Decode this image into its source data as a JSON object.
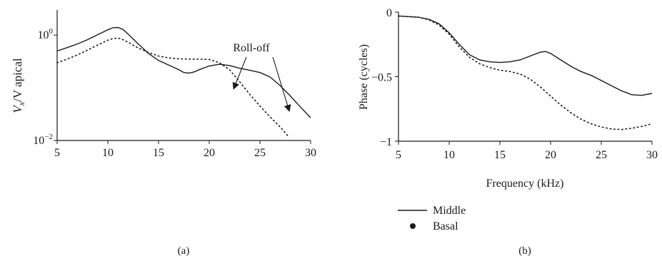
{
  "chart_data": [
    {
      "type": "line",
      "panel_label": "(a)",
      "xlabel": "",
      "ylabel": {
        "v": "V",
        "sub": "x",
        "rest": "/V apical"
      },
      "yscale": "log",
      "xlim": [
        5,
        30
      ],
      "ylim": [
        0.01,
        3
      ],
      "x_ticks": [
        5,
        10,
        15,
        20,
        25,
        30
      ],
      "y_ticks": [
        {
          "value": 1,
          "base": "10",
          "exp": "0"
        },
        {
          "value": 0.01,
          "base": "10",
          "exp": "−2"
        }
      ],
      "grid": false,
      "annotation": {
        "text": "Roll-off",
        "targets": [
          [
            22.4,
            0.095
          ],
          [
            27.9,
            0.036
          ]
        ]
      },
      "series": [
        {
          "name": "Middle",
          "style": "solid",
          "points": [
            [
              5,
              0.5
            ],
            [
              6,
              0.58
            ],
            [
              7,
              0.68
            ],
            [
              8,
              0.82
            ],
            [
              9,
              1.02
            ],
            [
              10,
              1.26
            ],
            [
              10.5,
              1.38
            ],
            [
              11,
              1.4
            ],
            [
              11.5,
              1.28
            ],
            [
              12,
              1.05
            ],
            [
              13,
              0.68
            ],
            [
              14,
              0.45
            ],
            [
              15,
              0.33
            ],
            [
              16,
              0.27
            ],
            [
              17,
              0.22
            ],
            [
              17.5,
              0.195
            ],
            [
              18,
              0.19
            ],
            [
              18.5,
              0.2
            ],
            [
              19,
              0.22
            ],
            [
              20,
              0.26
            ],
            [
              21,
              0.28
            ],
            [
              22,
              0.265
            ],
            [
              23,
              0.235
            ],
            [
              24,
              0.215
            ],
            [
              25,
              0.195
            ],
            [
              26,
              0.16
            ],
            [
              27,
              0.11
            ],
            [
              28,
              0.07
            ],
            [
              29,
              0.043
            ],
            [
              30,
              0.027
            ]
          ]
        },
        {
          "name": "Basal",
          "style": "dotted",
          "points": [
            [
              5,
              0.3
            ],
            [
              6,
              0.35
            ],
            [
              7,
              0.42
            ],
            [
              8,
              0.52
            ],
            [
              9,
              0.65
            ],
            [
              10,
              0.8
            ],
            [
              10.5,
              0.86
            ],
            [
              11,
              0.88
            ],
            [
              11.5,
              0.82
            ],
            [
              12,
              0.73
            ],
            [
              13,
              0.57
            ],
            [
              14,
              0.47
            ],
            [
              15,
              0.4
            ],
            [
              16,
              0.37
            ],
            [
              17,
              0.355
            ],
            [
              18,
              0.35
            ],
            [
              19,
              0.35
            ],
            [
              20,
              0.345
            ],
            [
              21,
              0.3
            ],
            [
              22,
              0.22
            ],
            [
              23,
              0.13
            ],
            [
              24,
              0.075
            ],
            [
              25,
              0.045
            ],
            [
              26,
              0.028
            ],
            [
              27,
              0.018
            ],
            [
              27.8,
              0.012
            ]
          ]
        }
      ]
    },
    {
      "type": "line",
      "panel_label": "(b)",
      "xlabel": "Frequency (kHz)",
      "ylabel": "Phase (cycles)",
      "xlim": [
        5,
        30
      ],
      "ylim": [
        -1,
        0
      ],
      "x_ticks": [
        5,
        10,
        15,
        20,
        25,
        30
      ],
      "y_ticks": [
        {
          "value": 0,
          "label": "0"
        },
        {
          "value": -0.5,
          "label": "−0.5"
        },
        {
          "value": -1,
          "label": "−1"
        }
      ],
      "grid": false,
      "series": [
        {
          "name": "Middle",
          "style": "solid",
          "points": [
            [
              5,
              -0.03
            ],
            [
              6,
              -0.035
            ],
            [
              7,
              -0.04
            ],
            [
              8,
              -0.055
            ],
            [
              9,
              -0.09
            ],
            [
              10,
              -0.16
            ],
            [
              11,
              -0.25
            ],
            [
              12,
              -0.33
            ],
            [
              13,
              -0.37
            ],
            [
              14,
              -0.385
            ],
            [
              15,
              -0.39
            ],
            [
              16,
              -0.385
            ],
            [
              17,
              -0.37
            ],
            [
              18,
              -0.34
            ],
            [
              19,
              -0.31
            ],
            [
              19.5,
              -0.305
            ],
            [
              20,
              -0.32
            ],
            [
              21,
              -0.37
            ],
            [
              22,
              -0.42
            ],
            [
              23,
              -0.46
            ],
            [
              24,
              -0.49
            ],
            [
              25,
              -0.53
            ],
            [
              26,
              -0.57
            ],
            [
              27,
              -0.61
            ],
            [
              28,
              -0.64
            ],
            [
              29,
              -0.645
            ],
            [
              30,
              -0.63
            ]
          ]
        },
        {
          "name": "Basal",
          "style": "dotted",
          "points": [
            [
              5,
              -0.03
            ],
            [
              6,
              -0.035
            ],
            [
              7,
              -0.04
            ],
            [
              8,
              -0.06
            ],
            [
              9,
              -0.1
            ],
            [
              10,
              -0.17
            ],
            [
              11,
              -0.27
            ],
            [
              12,
              -0.35
            ],
            [
              13,
              -0.4
            ],
            [
              14,
              -0.43
            ],
            [
              15,
              -0.45
            ],
            [
              16,
              -0.46
            ],
            [
              17,
              -0.48
            ],
            [
              18,
              -0.52
            ],
            [
              19,
              -0.58
            ],
            [
              20,
              -0.65
            ],
            [
              21,
              -0.72
            ],
            [
              22,
              -0.78
            ],
            [
              23,
              -0.83
            ],
            [
              24,
              -0.865
            ],
            [
              25,
              -0.89
            ],
            [
              26,
              -0.905
            ],
            [
              27,
              -0.91
            ],
            [
              28,
              -0.9
            ],
            [
              29,
              -0.885
            ],
            [
              30,
              -0.865
            ]
          ]
        }
      ]
    }
  ],
  "legend": {
    "placement": "below panel (b)",
    "entries": [
      {
        "label": "Middle",
        "marker": "line"
      },
      {
        "label": "Basal",
        "marker": "dot"
      }
    ]
  }
}
